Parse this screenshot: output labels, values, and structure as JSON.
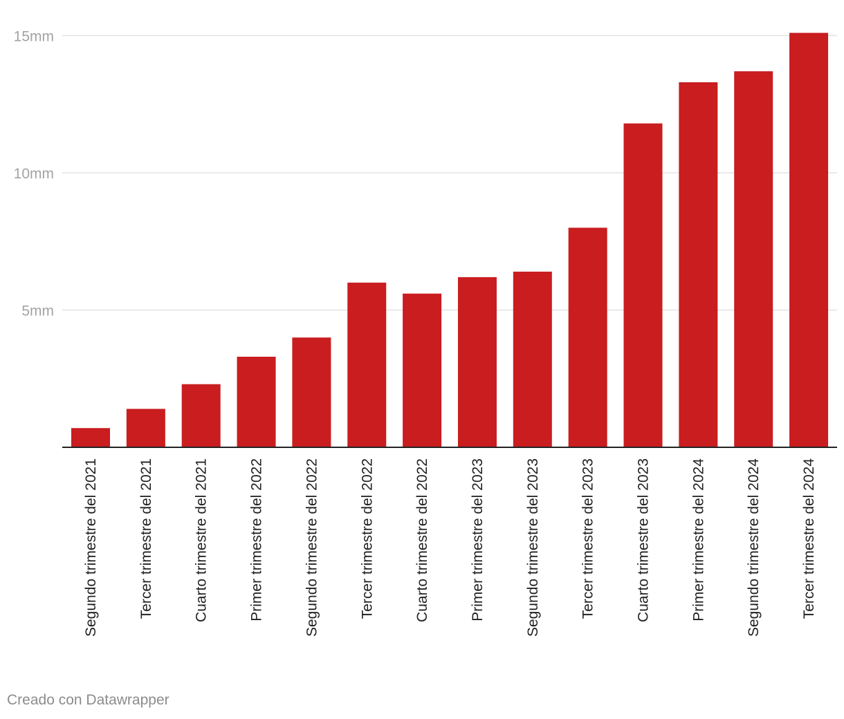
{
  "chart_data": {
    "type": "bar",
    "categories": [
      "Segundo trimestre del 2021",
      "Tercer trimestre del 2021",
      "Cuarto trimestre del 2021",
      "Primer trimestre del 2022",
      "Segundo trimestre del 2022",
      "Tercer trimestre del 2022",
      "Cuarto trimestre del 2022",
      "Primer trimestre del 2023",
      "Segundo trimestre del 2023",
      "Tercer trimestre del 2023",
      "Cuarto trimestre del 2023",
      "Primer trimestre del 2024",
      "Segundo trimestre del 2024",
      "Tercer trimestre del 2024"
    ],
    "values": [
      0.7,
      1.4,
      2.3,
      3.3,
      4.0,
      6.0,
      5.6,
      6.2,
      6.4,
      8.0,
      11.8,
      13.3,
      13.7,
      15.1
    ],
    "yticks": [
      {
        "value": 5,
        "label": "5mm"
      },
      {
        "value": 10,
        "label": "10mm"
      },
      {
        "value": 15,
        "label": "15mm"
      }
    ],
    "ylim": [
      0,
      15
    ],
    "grid": true,
    "bar_color": "#c91d1f",
    "grid_color": "#e2e2e2",
    "axis_color": "#222222",
    "tick_label_color": "#a3a3a3"
  },
  "footer": {
    "credit": "Creado con Datawrapper"
  }
}
